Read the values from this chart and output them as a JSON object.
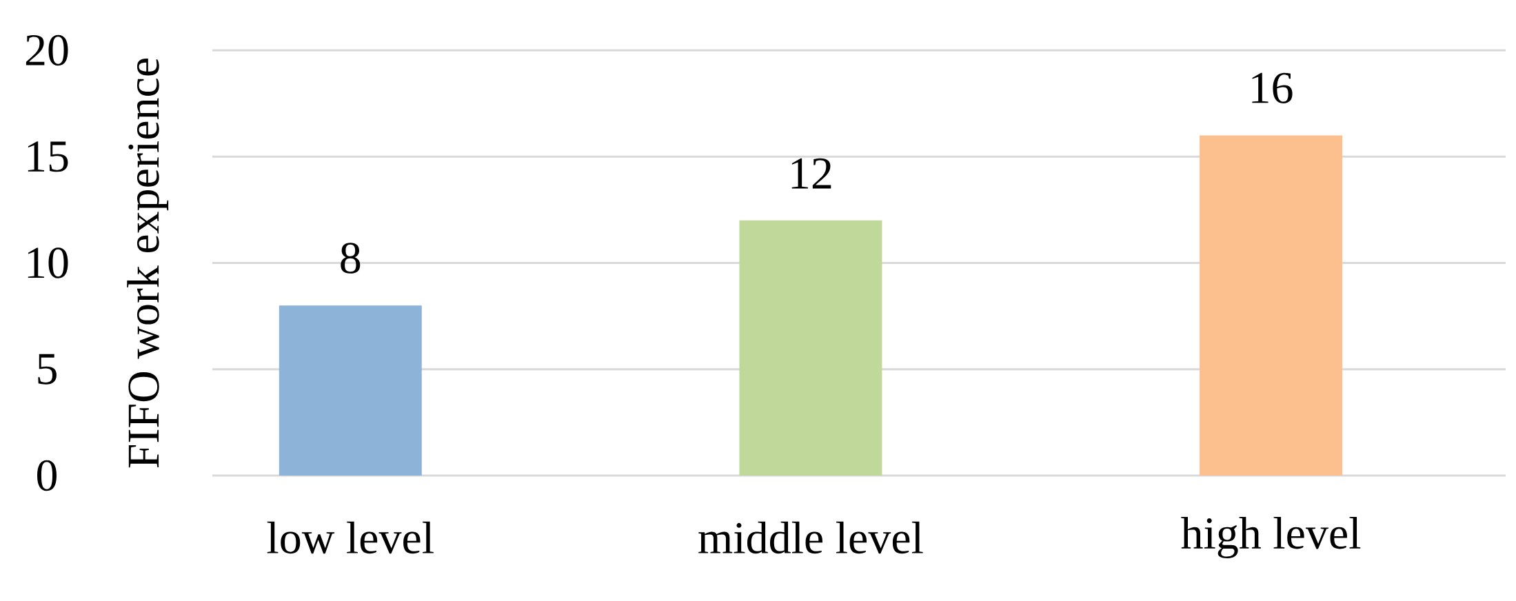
{
  "chart_data": {
    "type": "bar",
    "ylabel": "FIFO work experience",
    "categories": [
      "low level",
      "middle level",
      "high level"
    ],
    "values": [
      8,
      12,
      16
    ],
    "colors": [
      "#8db3d9",
      "#c0d89a",
      "#fcc08f"
    ],
    "ylim": [
      0,
      20
    ],
    "yticks": [
      0,
      5,
      10,
      15,
      20
    ],
    "grid": "y",
    "data_labels": true
  }
}
